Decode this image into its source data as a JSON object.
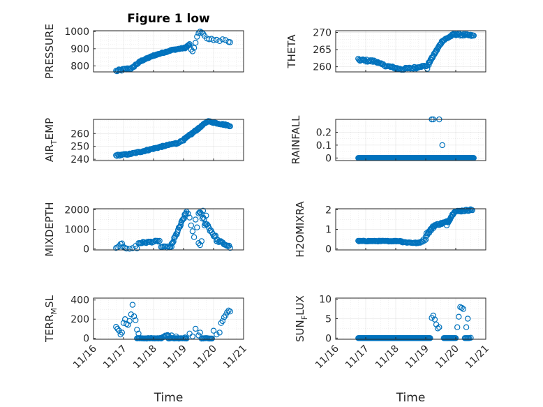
{
  "figure": {
    "title": "Figure 1 low",
    "marker_color": "#0072BD",
    "xlabel": "Time"
  },
  "chart_data": [
    {
      "type": "scatter",
      "panel": "pressure",
      "title": "Figure 1 low",
      "ylabel": "PRESSURE",
      "xlabel": "",
      "x_ticks": [
        "11/16",
        "11/17",
        "11/18",
        "11/19",
        "11/20",
        "11/21"
      ],
      "x_tick_values": [
        16,
        17,
        18,
        19,
        20,
        21
      ],
      "xlim": [
        16,
        21
      ],
      "ylim": [
        765,
        1005
      ],
      "y_ticks": [
        800,
        900,
        1000
      ],
      "y_ticks_minor": [
        825,
        850,
        875,
        925,
        950,
        975
      ],
      "grid": true,
      "show_x_tick_labels": false,
      "segments": [
        {
          "from": [
            16.75,
            770
          ],
          "to": [
            17.35,
            790
          ],
          "n": 20,
          "jitter": 6
        },
        {
          "from": [
            17.35,
            800
          ],
          "to": [
            17.6,
            830
          ],
          "n": 10,
          "jitter": 4
        },
        {
          "from": [
            17.6,
            830
          ],
          "to": [
            18.0,
            860
          ],
          "n": 16,
          "jitter": 3
        },
        {
          "from": [
            18.0,
            860
          ],
          "to": [
            18.6,
            892
          ],
          "n": 24,
          "jitter": 3
        },
        {
          "from": [
            18.6,
            892
          ],
          "to": [
            19.05,
            905
          ],
          "n": 16,
          "jitter": 3
        },
        {
          "from": [
            19.05,
            905
          ],
          "to": [
            19.2,
            925
          ],
          "n": 8,
          "jitter": 3
        }
      ],
      "points": [
        [
          19.25,
          895
        ],
        [
          19.3,
          885
        ],
        [
          19.35,
          905
        ],
        [
          19.4,
          935
        ],
        [
          19.45,
          970
        ],
        [
          19.5,
          990
        ],
        [
          19.55,
          1000
        ],
        [
          19.6,
          995
        ],
        [
          19.65,
          988
        ],
        [
          19.7,
          975
        ],
        [
          19.78,
          960
        ],
        [
          19.85,
          955
        ],
        [
          19.93,
          958
        ],
        [
          20.0,
          950
        ],
        [
          20.1,
          952
        ],
        [
          20.2,
          945
        ],
        [
          20.3,
          955
        ],
        [
          20.4,
          950
        ],
        [
          20.5,
          940
        ],
        [
          20.55,
          938
        ]
      ]
    },
    {
      "type": "scatter",
      "panel": "theta",
      "ylabel": "THETA",
      "x_ticks": [
        "11/16",
        "11/17",
        "11/18",
        "11/19",
        "11/20",
        "11/21"
      ],
      "x_tick_values": [
        16,
        17,
        18,
        19,
        20,
        21
      ],
      "xlim": [
        16,
        21
      ],
      "ylim": [
        258.5,
        270.5
      ],
      "y_ticks": [
        260,
        265,
        270
      ],
      "y_ticks_minor": [
        261,
        262,
        263,
        264,
        266,
        267,
        268,
        269
      ],
      "grid": true,
      "show_x_tick_labels": false,
      "segments": [
        {
          "from": [
            16.75,
            262
          ],
          "to": [
            17.4,
            261.5
          ],
          "n": 22,
          "jitter": 0.35
        },
        {
          "from": [
            17.4,
            261
          ],
          "to": [
            17.8,
            260
          ],
          "n": 12,
          "jitter": 0.3
        },
        {
          "from": [
            17.8,
            260
          ],
          "to": [
            18.2,
            259.2
          ],
          "n": 14,
          "jitter": 0.3
        },
        {
          "from": [
            18.2,
            259.3
          ],
          "to": [
            18.75,
            259.8
          ],
          "n": 18,
          "jitter": 0.3
        },
        {
          "from": [
            18.75,
            260
          ],
          "to": [
            19.05,
            260.3
          ],
          "n": 10,
          "jitter": 0.2
        },
        {
          "from": [
            19.1,
            261
          ],
          "to": [
            19.55,
            267.5
          ],
          "n": 24,
          "jitter": 0.3
        },
        {
          "from": [
            19.55,
            267.5
          ],
          "to": [
            19.95,
            269.5
          ],
          "n": 16,
          "jitter": 0.25
        },
        {
          "from": [
            19.95,
            269.5
          ],
          "to": [
            20.6,
            269
          ],
          "n": 24,
          "jitter": 0.3
        }
      ],
      "points": [
        [
          19.05,
          259.4
        ],
        [
          19.1,
          260.5
        ]
      ]
    },
    {
      "type": "scatter",
      "panel": "air-temp",
      "ylabel": "AIR_TEMP",
      "ylabel_main": "AIR",
      "ylabel_sub": "T",
      "ylabel_tail": "EMP",
      "x_ticks": [
        "11/16",
        "11/17",
        "11/18",
        "11/19",
        "11/20",
        "11/21"
      ],
      "x_tick_values": [
        16,
        17,
        18,
        19,
        20,
        21
      ],
      "xlim": [
        16,
        21
      ],
      "ylim": [
        239,
        271
      ],
      "y_ticks": [
        240,
        250,
        260
      ],
      "y_ticks_minor": [
        245,
        255,
        265,
        270
      ],
      "grid": true,
      "show_x_tick_labels": false,
      "segments": [
        {
          "from": [
            16.75,
            243
          ],
          "to": [
            17.2,
            244
          ],
          "n": 16,
          "jitter": 0.5
        },
        {
          "from": [
            17.2,
            244
          ],
          "to": [
            17.6,
            246
          ],
          "n": 14,
          "jitter": 0.5
        },
        {
          "from": [
            17.6,
            246
          ],
          "to": [
            18.3,
            250
          ],
          "n": 28,
          "jitter": 0.5
        },
        {
          "from": [
            18.3,
            250
          ],
          "to": [
            18.75,
            252.5
          ],
          "n": 16,
          "jitter": 0.4
        },
        {
          "from": [
            18.75,
            252
          ],
          "to": [
            19.0,
            255
          ],
          "n": 8,
          "jitter": 0.4
        },
        {
          "from": [
            19.0,
            255
          ],
          "to": [
            19.5,
            264
          ],
          "n": 22,
          "jitter": 0.6
        },
        {
          "from": [
            19.5,
            264
          ],
          "to": [
            19.8,
            269.5
          ],
          "n": 14,
          "jitter": 0.4
        },
        {
          "from": [
            19.8,
            269.5
          ],
          "to": [
            20.55,
            266
          ],
          "n": 28,
          "jitter": 0.5
        }
      ],
      "points": []
    },
    {
      "type": "scatter",
      "panel": "rainfall",
      "ylabel": "RAINFALL",
      "x_ticks": [
        "11/16",
        "11/17",
        "11/18",
        "11/19",
        "11/20",
        "11/21"
      ],
      "x_tick_values": [
        16,
        17,
        18,
        19,
        20,
        21
      ],
      "xlim": [
        16,
        21
      ],
      "ylim": [
        -0.02,
        0.3
      ],
      "y_ticks": [
        0,
        0.1,
        0.2
      ],
      "y_ticks_minor": [
        0.05,
        0.15,
        0.25
      ],
      "grid": true,
      "show_x_tick_labels": false,
      "segments": [
        {
          "from": [
            16.75,
            0
          ],
          "to": [
            20.6,
            0
          ],
          "n": 190,
          "jitter": 0
        }
      ],
      "points": [
        [
          19.2,
          0.3
        ],
        [
          19.25,
          0.3
        ],
        [
          19.45,
          0.3
        ],
        [
          19.55,
          0.1
        ]
      ]
    },
    {
      "type": "scatter",
      "panel": "mixdepth",
      "ylabel": "MIXDEPTH",
      "x_ticks": [
        "11/16",
        "11/17",
        "11/18",
        "11/19",
        "11/20",
        "11/21"
      ],
      "x_tick_values": [
        16,
        17,
        18,
        19,
        20,
        21
      ],
      "xlim": [
        16,
        21
      ],
      "ylim": [
        -50,
        2050
      ],
      "y_ticks": [
        0,
        1000,
        2000
      ],
      "y_ticks_minor": [
        500,
        1500
      ],
      "grid": true,
      "show_x_tick_labels": false,
      "segments": [
        {
          "from": [
            17.5,
            300
          ],
          "to": [
            18.2,
            400
          ],
          "n": 20,
          "jitter": 40
        },
        {
          "from": [
            18.25,
            100
          ],
          "to": [
            18.6,
            100
          ],
          "n": 10,
          "jitter": 30
        },
        {
          "from": [
            18.6,
            200
          ],
          "to": [
            19.1,
            1900
          ],
          "n": 24,
          "jitter": 80
        },
        {
          "from": [
            19.5,
            1900
          ],
          "to": [
            20.1,
            500
          ],
          "n": 20,
          "jitter": 120
        },
        {
          "from": [
            20.1,
            450
          ],
          "to": [
            20.55,
            100
          ],
          "n": 14,
          "jitter": 60
        }
      ],
      "points": [
        [
          16.75,
          50
        ],
        [
          16.8,
          80
        ],
        [
          16.85,
          150
        ],
        [
          16.9,
          250
        ],
        [
          16.95,
          280
        ],
        [
          17.0,
          100
        ],
        [
          17.05,
          50
        ],
        [
          17.1,
          20
        ],
        [
          17.2,
          10
        ],
        [
          17.3,
          40
        ],
        [
          17.4,
          150
        ],
        [
          17.45,
          30
        ],
        [
          19.15,
          1800
        ],
        [
          19.2,
          1600
        ],
        [
          19.25,
          1200
        ],
        [
          19.3,
          900
        ],
        [
          19.35,
          600
        ],
        [
          19.4,
          1500
        ],
        [
          19.45,
          1100
        ],
        [
          19.5,
          300
        ],
        [
          19.55,
          200
        ],
        [
          19.6,
          400
        ],
        [
          19.7,
          1200
        ],
        [
          19.75,
          1700
        ],
        [
          19.65,
          1950
        ]
      ]
    },
    {
      "type": "scatter",
      "panel": "h2o-mixra",
      "ylabel": "H2OMIXRA",
      "x_ticks": [
        "11/16",
        "11/17",
        "11/18",
        "11/19",
        "11/20",
        "11/21"
      ],
      "x_tick_values": [
        16,
        17,
        18,
        19,
        20,
        21
      ],
      "xlim": [
        16,
        21
      ],
      "ylim": [
        -0.05,
        2.05
      ],
      "y_ticks": [
        0,
        1,
        2
      ],
      "y_ticks_minor": [
        0.5,
        1.5
      ],
      "grid": true,
      "show_x_tick_labels": false,
      "segments": [
        {
          "from": [
            16.75,
            0.4
          ],
          "to": [
            18.2,
            0.4
          ],
          "n": 60,
          "jitter": 0.02
        },
        {
          "from": [
            18.2,
            0.35
          ],
          "to": [
            18.75,
            0.3
          ],
          "n": 18,
          "jitter": 0.03
        },
        {
          "from": [
            18.75,
            0.3
          ],
          "to": [
            19.0,
            0.5
          ],
          "n": 8,
          "jitter": 0.05
        },
        {
          "from": [
            19.0,
            0.7
          ],
          "to": [
            19.3,
            1.2
          ],
          "n": 14,
          "jitter": 0.08
        },
        {
          "from": [
            19.3,
            1.2
          ],
          "to": [
            19.75,
            1.4
          ],
          "n": 18,
          "jitter": 0.05
        },
        {
          "from": [
            19.75,
            1.4
          ],
          "to": [
            19.95,
            1.9
          ],
          "n": 10,
          "jitter": 0.05
        },
        {
          "from": [
            19.95,
            1.9
          ],
          "to": [
            20.55,
            2.0
          ],
          "n": 22,
          "jitter": 0.04
        }
      ],
      "points": [
        [
          19.7,
          1.2
        ],
        [
          19.8,
          1.5
        ]
      ]
    },
    {
      "type": "scatter",
      "panel": "terr-msl",
      "ylabel": "TERR_MSL",
      "ylabel_main": "TERR",
      "ylabel_sub": "M",
      "ylabel_tail": "SL",
      "x_ticks": [
        "11/16",
        "11/17",
        "11/18",
        "11/19",
        "11/20",
        "11/21"
      ],
      "x_tick_values": [
        16,
        17,
        18,
        19,
        20,
        21
      ],
      "xlim": [
        16,
        21
      ],
      "ylim": [
        -10,
        420
      ],
      "y_ticks": [
        0,
        200,
        400
      ],
      "y_ticks_minor": [
        100,
        300
      ],
      "grid": true,
      "show_x_tick_labels": true,
      "segments": [
        {
          "from": [
            17.45,
            0
          ],
          "to": [
            18.25,
            0
          ],
          "n": 28,
          "jitter": 3
        },
        {
          "from": [
            18.25,
            10
          ],
          "to": [
            18.5,
            30
          ],
          "n": 8,
          "jitter": 8
        },
        {
          "from": [
            18.5,
            0
          ],
          "to": [
            19.1,
            0
          ],
          "n": 20,
          "jitter": 3
        },
        {
          "from": [
            19.6,
            0
          ],
          "to": [
            19.95,
            0
          ],
          "n": 12,
          "jitter": 3
        }
      ],
      "points": [
        [
          16.75,
          120
        ],
        [
          16.8,
          100
        ],
        [
          16.85,
          80
        ],
        [
          16.9,
          40
        ],
        [
          16.95,
          60
        ],
        [
          17.0,
          160
        ],
        [
          17.05,
          200
        ],
        [
          17.1,
          150
        ],
        [
          17.15,
          140
        ],
        [
          17.2,
          180
        ],
        [
          17.25,
          250
        ],
        [
          17.3,
          350
        ],
        [
          17.35,
          230
        ],
        [
          17.4,
          190
        ],
        [
          17.45,
          90
        ],
        [
          17.5,
          50
        ],
        [
          18.6,
          30
        ],
        [
          18.75,
          20
        ],
        [
          19.05,
          10
        ],
        [
          19.2,
          50
        ],
        [
          19.3,
          20
        ],
        [
          19.4,
          100
        ],
        [
          19.5,
          30
        ],
        [
          19.55,
          60
        ],
        [
          20.0,
          80
        ],
        [
          20.1,
          40
        ],
        [
          20.2,
          60
        ],
        [
          20.25,
          160
        ],
        [
          20.3,
          180
        ],
        [
          20.35,
          220
        ],
        [
          20.4,
          240
        ],
        [
          20.45,
          270
        ],
        [
          20.5,
          290
        ],
        [
          20.55,
          280
        ]
      ]
    },
    {
      "type": "scatter",
      "panel": "sun-flux",
      "ylabel": "SUN_FLUX",
      "ylabel_main": "SUN",
      "ylabel_sub": "F",
      "ylabel_tail": "LUX",
      "x_ticks": [
        "11/16",
        "11/17",
        "11/18",
        "11/19",
        "11/20",
        "11/21"
      ],
      "x_tick_values": [
        16,
        17,
        18,
        19,
        20,
        21
      ],
      "xlim": [
        16,
        21
      ],
      "ylim": [
        -0.3,
        10.3
      ],
      "y_ticks": [
        0,
        5,
        10
      ],
      "y_ticks_minor": [
        2.5,
        7.5
      ],
      "grid": true,
      "show_x_tick_labels": true,
      "segments": [
        {
          "from": [
            16.75,
            0
          ],
          "to": [
            19.15,
            0
          ],
          "n": 110,
          "jitter": 0
        },
        {
          "from": [
            19.6,
            0
          ],
          "to": [
            20.0,
            0
          ],
          "n": 18,
          "jitter": 0
        },
        {
          "from": [
            20.3,
            0
          ],
          "to": [
            20.45,
            0
          ],
          "n": 6,
          "jitter": 0
        }
      ],
      "points": [
        [
          19.2,
          5.2
        ],
        [
          19.25,
          5.8
        ],
        [
          19.3,
          4.8
        ],
        [
          19.35,
          3.5
        ],
        [
          19.4,
          2.5
        ],
        [
          19.45,
          2.8
        ],
        [
          20.05,
          2.8
        ],
        [
          20.1,
          5.5
        ],
        [
          20.15,
          8.0
        ],
        [
          20.2,
          7.8
        ],
        [
          20.25,
          7.5
        ],
        [
          20.35,
          2.8
        ],
        [
          20.4,
          5.0
        ],
        [
          20.5,
          0.1
        ]
      ]
    }
  ]
}
